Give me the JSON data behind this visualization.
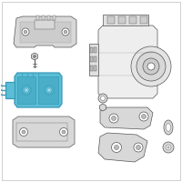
{
  "background_color": "#ffffff",
  "border_color": "#c8c8c8",
  "highlight": "#5bbdd6",
  "highlight_dark": "#3a9ab8",
  "highlight_mid": "#4aaec8",
  "outline": "#555555",
  "light_gray": "#d8d8d8",
  "mid_gray": "#bbbbbb",
  "dark_gray": "#888888",
  "white": "#ffffff",
  "fig_width": 2.0,
  "fig_height": 2.0,
  "dpi": 100
}
